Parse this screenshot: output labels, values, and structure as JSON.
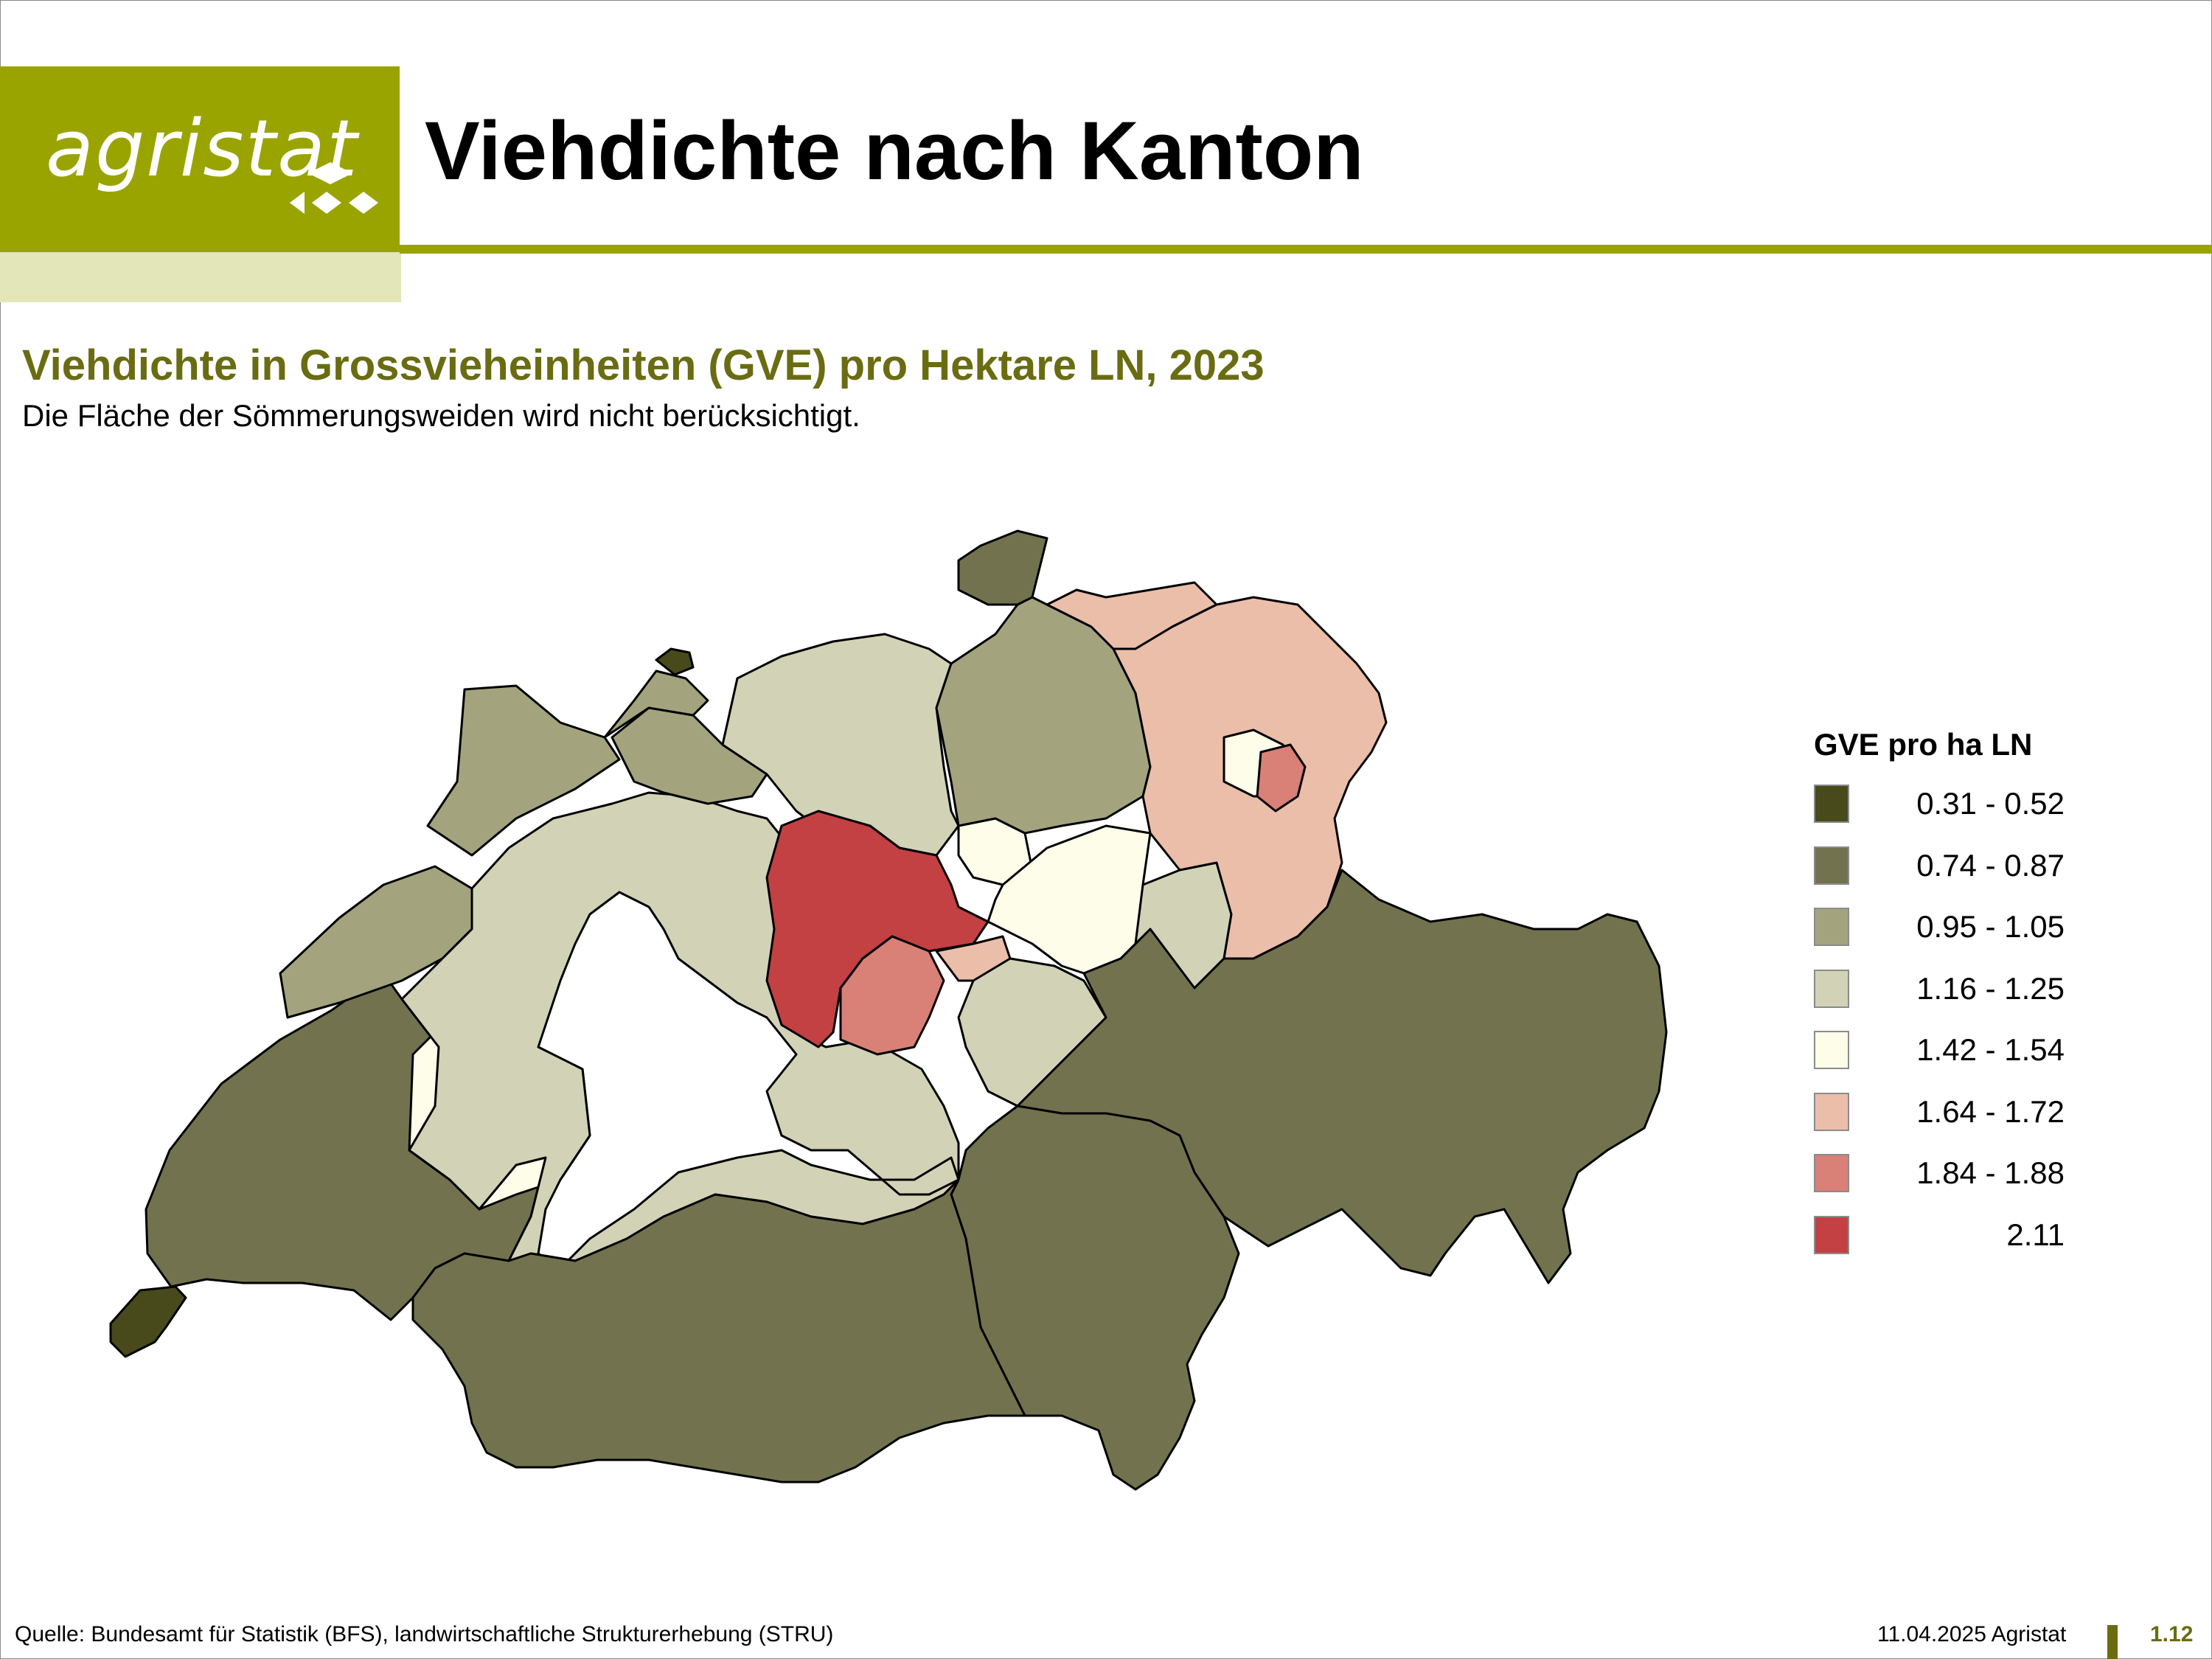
{
  "header": {
    "logo_text": "agristat",
    "title": "Viehdichte nach Kanton"
  },
  "map": {
    "subtitle": "Viehdichte in Grossvieheinheiten (GVE) pro Hektare LN, 2023",
    "note": "Die Fläche der Sömmerungsweiden wird nicht berücksichtigt.",
    "legend": {
      "title": "GVE pro ha LN",
      "classes": [
        {
          "label": "0.31 - 0.52",
          "color": "#484a1c"
        },
        {
          "label": "0.74 - 0.87",
          "color": "#72734e"
        },
        {
          "label": "0.95 - 1.05",
          "color": "#a3a47e"
        },
        {
          "label": "1.16 - 1.25",
          "color": "#d2d3b6"
        },
        {
          "label": "1.42 - 1.54",
          "color": "#fefdea"
        },
        {
          "label": "1.64 - 1.72",
          "color": "#ebbea9"
        },
        {
          "label": "1.84 - 1.88",
          "color": "#d98077"
        },
        {
          "label": "2.11",
          "color": "#c34043"
        }
      ]
    }
  },
  "footer": {
    "source": "Quelle: Bundesamt für Statistik (BFS), landwirtschaftliche Strukturerhebung (STRU)",
    "date": "11.04.2025 Agristat",
    "page": "1.12"
  }
}
